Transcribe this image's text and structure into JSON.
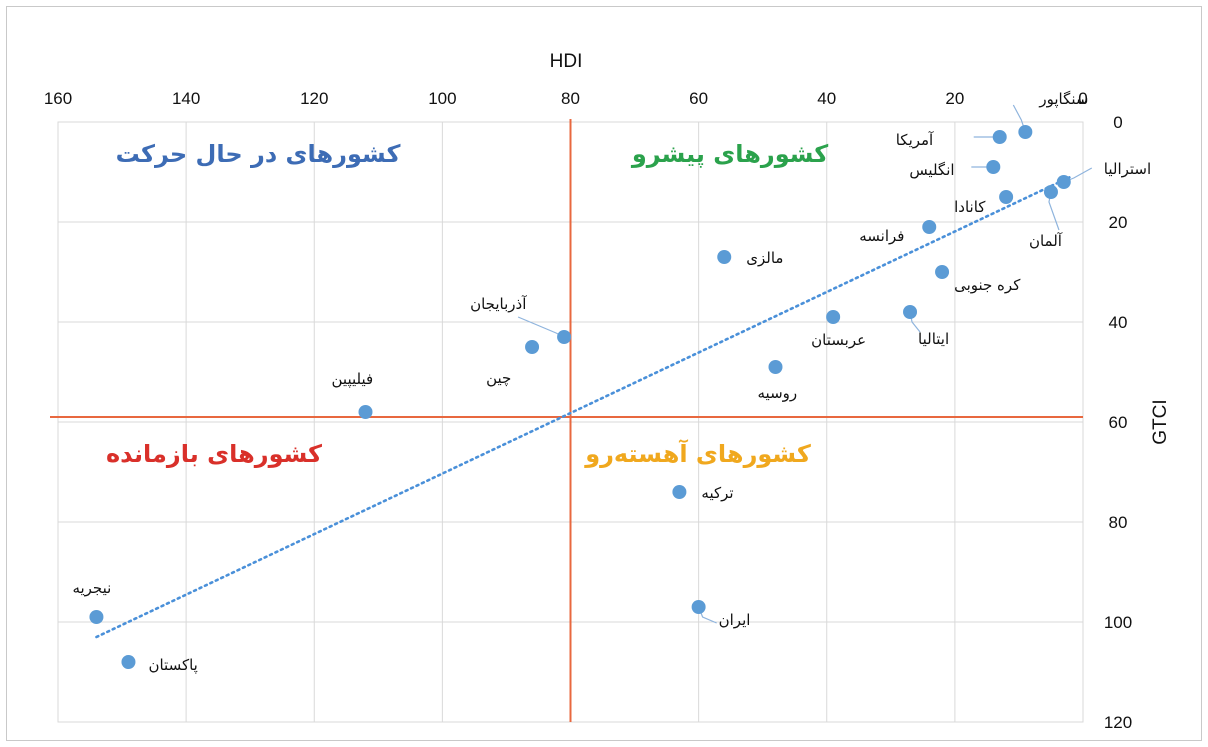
{
  "chart_data": {
    "type": "scatter",
    "xlabel": "HDI",
    "ylabel": "GTCI",
    "xlim": [
      160,
      0
    ],
    "ylim": [
      0,
      120
    ],
    "x_reversed": true,
    "y_reversed": true,
    "x_ticks": [
      "160",
      "140",
      "120",
      "100",
      "80",
      "60",
      "40",
      "20",
      "0"
    ],
    "y_ticks": [
      "0",
      "20",
      "40",
      "60",
      "80",
      "100",
      "120"
    ],
    "grid": true,
    "divider_lines": {
      "x": 80,
      "y": 59
    },
    "trendline": {
      "style": "dotted",
      "from": [
        154,
        103
      ],
      "to": [
        2,
        11
      ]
    },
    "quadrant_labels": [
      {
        "text": "کشورهای پیشرو",
        "color": "#2ba24c"
      },
      {
        "text": "کشورهای در حال حرکت",
        "color": "#3d6cb5"
      },
      {
        "text": "کشورهای آهسته‌رو",
        "color": "#f0a81e"
      },
      {
        "text": "کشورهای بازمانده",
        "color": "#d9302a"
      }
    ],
    "points": [
      {
        "label": "سنگاپور",
        "x": 9,
        "y": 2
      },
      {
        "label": "آمریکا",
        "x": 13,
        "y": 3
      },
      {
        "label": "انگلیس",
        "x": 14,
        "y": 9
      },
      {
        "label": "استرالیا",
        "x": 3,
        "y": 12
      },
      {
        "label": "آلمان",
        "x": 5,
        "y": 14
      },
      {
        "label": "کانادا",
        "x": 12,
        "y": 15
      },
      {
        "label": "فرانسه",
        "x": 24,
        "y": 21
      },
      {
        "label": "مالزی",
        "x": 56,
        "y": 27
      },
      {
        "label": "کره جنوبی",
        "x": 22,
        "y": 30
      },
      {
        "label": "ایتالیا",
        "x": 27,
        "y": 38
      },
      {
        "label": "عربستان",
        "x": 39,
        "y": 39
      },
      {
        "label": "آذربایجان",
        "x": 81,
        "y": 43
      },
      {
        "label": "چین",
        "x": 86,
        "y": 45
      },
      {
        "label": "روسیه",
        "x": 48,
        "y": 49
      },
      {
        "label": "فیلیپین",
        "x": 112,
        "y": 58
      },
      {
        "label": "ترکیه",
        "x": 63,
        "y": 74
      },
      {
        "label": "ایران",
        "x": 60,
        "y": 97
      },
      {
        "label": "نیجریه",
        "x": 154,
        "y": 99
      },
      {
        "label": "پاکستان",
        "x": 149,
        "y": 108
      }
    ],
    "colors": {
      "point": "#5b9bd5",
      "divider": "#e8683f",
      "trend": "#4a90d9",
      "grid": "#d9d9d9"
    }
  }
}
